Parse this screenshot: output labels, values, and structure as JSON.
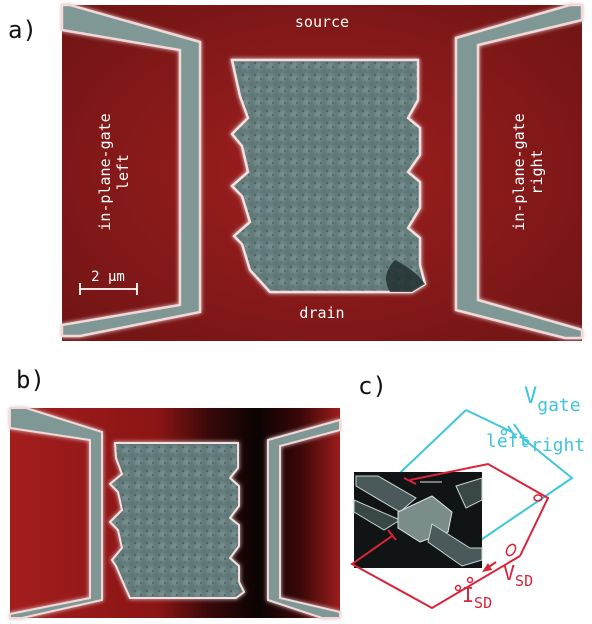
{
  "panels": {
    "a": {
      "label": "a)",
      "source": "source",
      "drain": "drain",
      "gate_left": [
        "in-plane-gate",
        "left"
      ],
      "gate_right": [
        "in-plane-gate",
        "right"
      ],
      "scale_bar": "2 µm"
    },
    "b": {
      "label": "b)"
    },
    "c": {
      "label": "c)",
      "v_gate": "V",
      "v_gate_sub": "gate",
      "left": "left",
      "right": "right",
      "v_sd": "V",
      "v_sd_sub": "SD",
      "i_sd": "I",
      "i_sd_sub": "SD"
    }
  },
  "colors": {
    "background_red": "#8a1a1a",
    "electrode_gray": "#7f9896",
    "cyan_circuit": "#3ec6dc",
    "red_circuit": "#d8243a"
  }
}
